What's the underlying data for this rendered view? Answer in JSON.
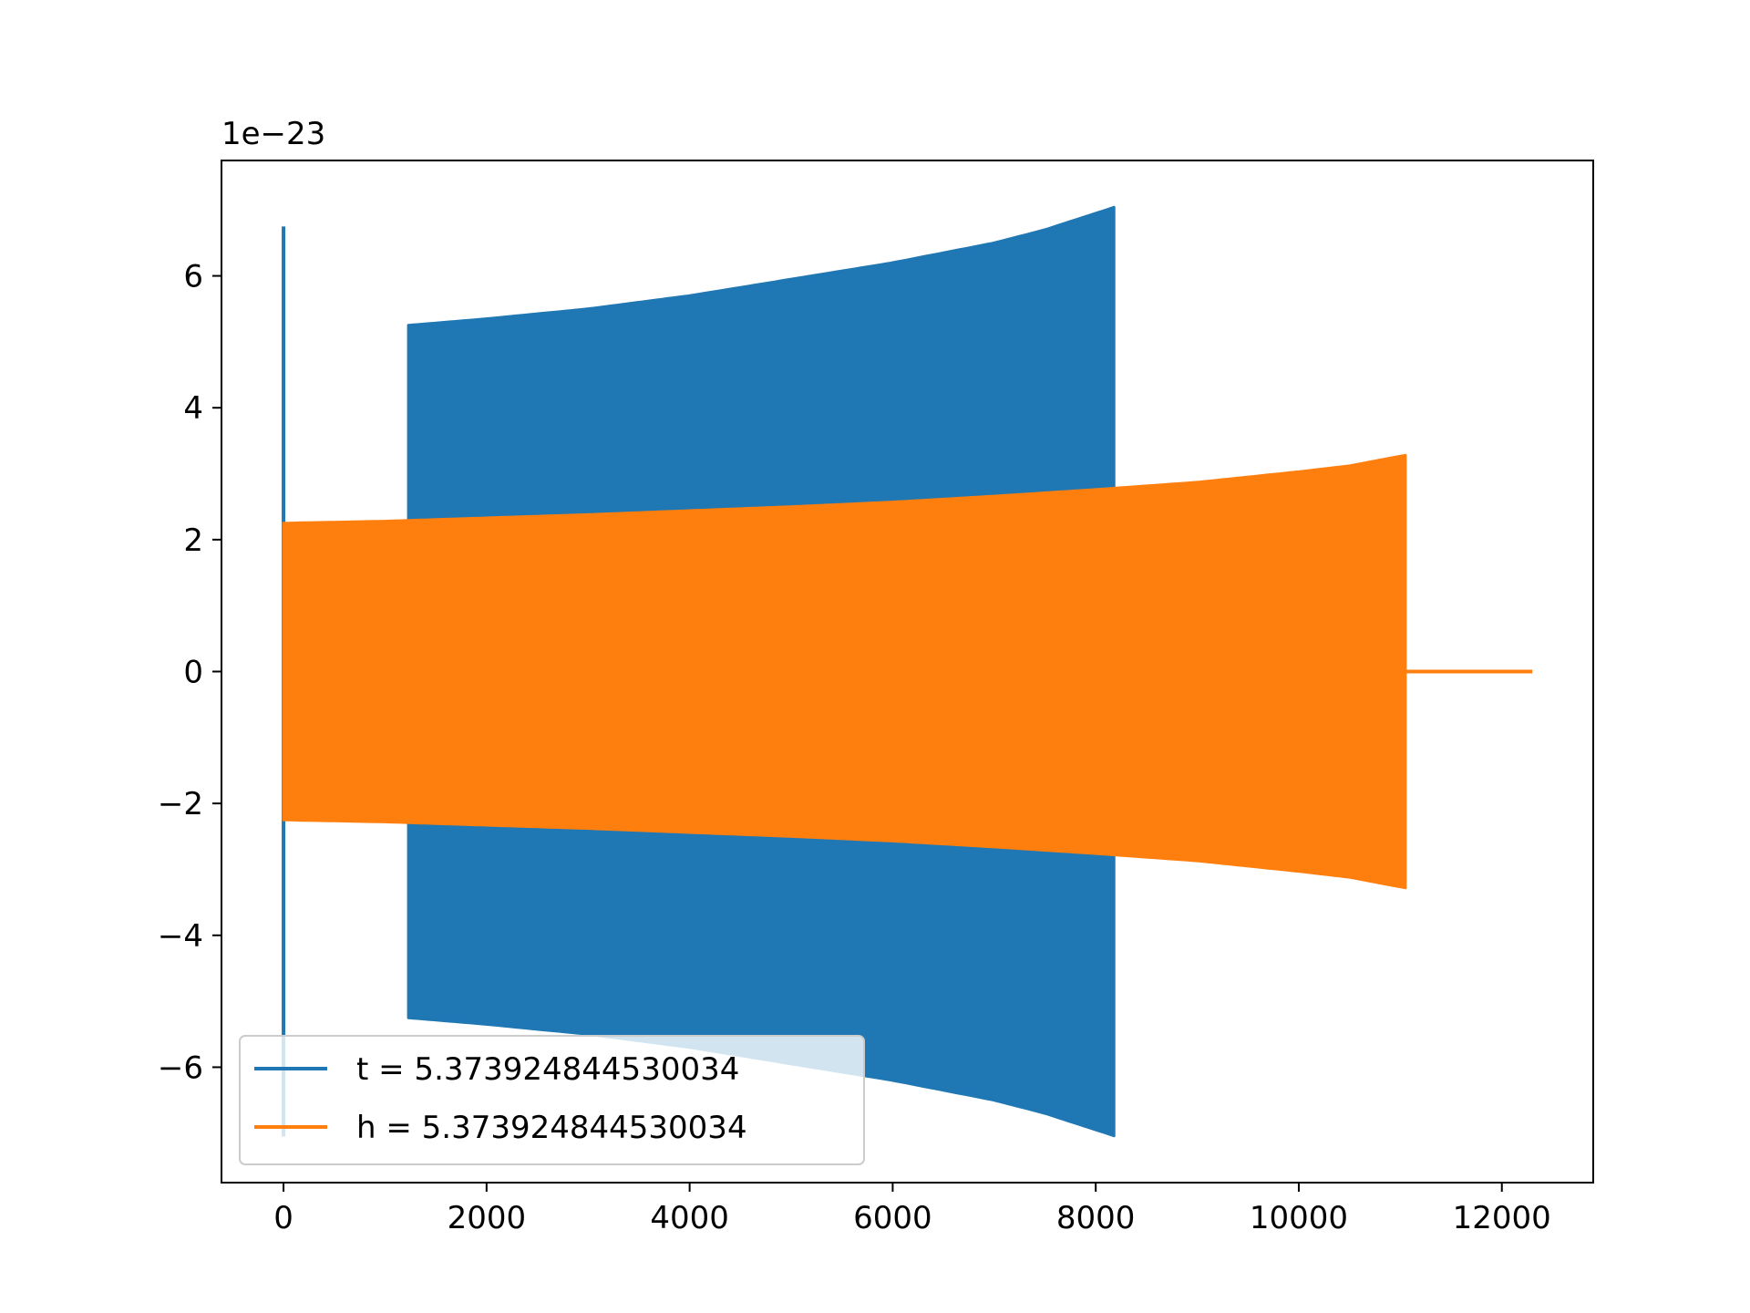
{
  "chart_data": {
    "type": "line",
    "title": "",
    "xlabel": "",
    "ylabel": "",
    "offset_text": "1e−23",
    "xlim": [
      -611,
      12900
    ],
    "ylim": [
      -7.75,
      7.75
    ],
    "xticks": [
      {
        "value": 0,
        "label": "0"
      },
      {
        "value": 2000,
        "label": "2000"
      },
      {
        "value": 4000,
        "label": "4000"
      },
      {
        "value": 6000,
        "label": "6000"
      },
      {
        "value": 8000,
        "label": "8000"
      },
      {
        "value": 10000,
        "label": "10000"
      },
      {
        "value": 12000,
        "label": "12000"
      }
    ],
    "yticks": [
      {
        "value": -6,
        "label": "−6"
      },
      {
        "value": -4,
        "label": "−4"
      },
      {
        "value": -2,
        "label": "−2"
      },
      {
        "value": 0,
        "label": "0"
      },
      {
        "value": 2,
        "label": "2"
      },
      {
        "value": 4,
        "label": "4"
      },
      {
        "value": 6,
        "label": "6"
      }
    ],
    "grid": false,
    "legend_position": "lower-left",
    "series": [
      {
        "name": "t = 5.373924844530034",
        "color": "#1f77b4",
        "description": "oscillatory waveform: spike near x=0, then dense oscillation from x≈1230 to x≈8200 with growing envelope",
        "spike": {
          "x": 0,
          "max": 6.75,
          "min": -7.05
        },
        "envelope": {
          "x": [
            1230,
            2000,
            3000,
            4000,
            5000,
            6000,
            7000,
            7500,
            8000,
            8200
          ],
          "amp": [
            5.25,
            5.35,
            5.5,
            5.7,
            5.95,
            6.2,
            6.5,
            6.7,
            6.95,
            7.05
          ]
        }
      },
      {
        "name": "h = 5.373924844530034",
        "color": "#ff7f0e",
        "description": "oscillatory waveform from x≈0 to x≈11050 with slowly growing envelope, then zero until x≈12300",
        "envelope": {
          "x": [
            0,
            1000,
            2000,
            3000,
            4000,
            5000,
            6000,
            7000,
            8000,
            9000,
            10000,
            10500,
            11050
          ],
          "amp": [
            2.25,
            2.28,
            2.33,
            2.38,
            2.44,
            2.5,
            2.57,
            2.66,
            2.76,
            2.87,
            3.03,
            3.12,
            3.28
          ]
        },
        "tail": {
          "x": [
            11050,
            12300
          ],
          "y": 0
        }
      }
    ]
  }
}
